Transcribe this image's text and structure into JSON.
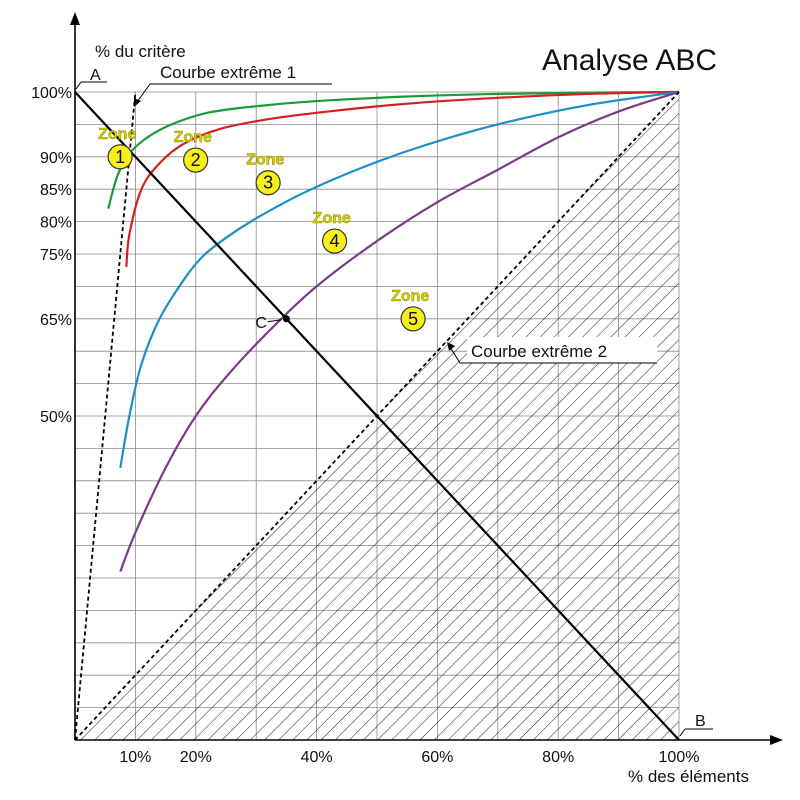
{
  "chart_data": {
    "type": "line",
    "title": "Analyse ABC",
    "xlabel": "% des éléments",
    "ylabel": "% du critère",
    "xlim": [
      0,
      100
    ],
    "ylim": [
      0,
      100
    ],
    "grid": true,
    "x_tick_labels": [
      "10%",
      "20%",
      "40%",
      "60%",
      "80%",
      "100%"
    ],
    "y_tick_labels": [
      "100%",
      "90%",
      "85%",
      "80%",
      "75%",
      "65%",
      "50%"
    ],
    "series": [
      {
        "color": "#1a9a3a",
        "x": [
          5.5,
          7,
          9,
          12,
          16,
          22,
          30,
          40,
          55,
          70,
          85,
          100
        ],
        "y": [
          82,
          87,
          90.5,
          93,
          95,
          96.8,
          97.8,
          98.6,
          99.3,
          99.7,
          99.9,
          100
        ]
      },
      {
        "color": "#d62020",
        "x": [
          8.5,
          9,
          11,
          14,
          18,
          24,
          32,
          42,
          55,
          70,
          85,
          100
        ],
        "y": [
          73,
          78,
          85,
          89,
          92,
          94.3,
          95.8,
          97,
          98.2,
          99.1,
          99.7,
          100
        ]
      },
      {
        "color": "#1a8fc8",
        "x": [
          7.5,
          9,
          11,
          14,
          18,
          21,
          25,
          30,
          38,
          48,
          58,
          70,
          85,
          100
        ],
        "y": [
          42,
          50,
          58,
          65,
          71,
          74.5,
          77.5,
          80.5,
          84.5,
          88.5,
          91.8,
          95,
          98,
          100
        ]
      },
      {
        "color": "#7b3a8a",
        "x": [
          7.5,
          10,
          15,
          20,
          25,
          32,
          40,
          50,
          60,
          70,
          80,
          90,
          100
        ],
        "y": [
          26,
          32,
          42,
          50,
          56,
          63,
          70,
          77,
          83,
          88,
          93,
          97,
          100
        ]
      },
      {
        "color": "#000000",
        "x": [
          0,
          100
        ],
        "y": [
          100,
          0
        ]
      },
      {
        "color": "#000000",
        "dashed": true,
        "x": [
          0,
          10
        ],
        "y": [
          0,
          100
        ]
      },
      {
        "color": "#000000",
        "dashed": true,
        "x": [
          0,
          100
        ],
        "y": [
          0,
          100
        ]
      }
    ],
    "points": [
      {
        "label": "A",
        "x": 0,
        "y": 100
      },
      {
        "label": "B",
        "x": 100,
        "y": 0
      },
      {
        "label": "C",
        "x": 35,
        "y": 65
      }
    ],
    "annotations": [
      "Courbe extrême 1",
      "Courbe extrême 2"
    ],
    "zones": [
      {
        "word": "Zone",
        "number": "1",
        "x": 3.5,
        "y": 90
      },
      {
        "word": "Zone",
        "number": "2",
        "x": 16,
        "y": 89.5
      },
      {
        "word": "Zone",
        "number": "3",
        "x": 28,
        "y": 86
      },
      {
        "word": "Zone",
        "number": "4",
        "x": 39,
        "y": 77
      },
      {
        "word": "Zone",
        "number": "5",
        "x": 52,
        "y": 65
      }
    ]
  }
}
